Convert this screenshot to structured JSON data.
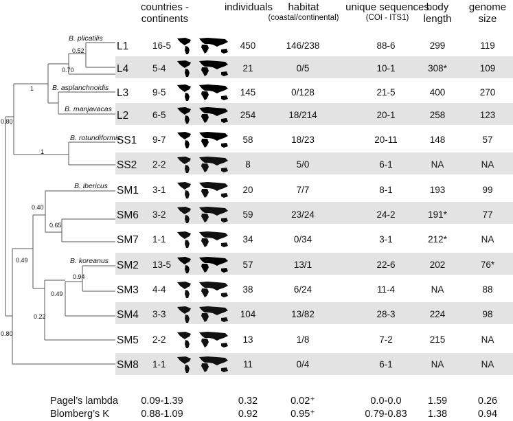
{
  "headers": {
    "countries": "countries - continents",
    "countries_line1": "countries -",
    "countries_line2": "continents",
    "individuals": "individuals",
    "habitat": "habitat",
    "habitat_sub": "(coastal/continental)",
    "unique": "unique sequences",
    "unique_sub": "(COI - ITS1)",
    "body": "body",
    "body2": "length",
    "genome": "genome",
    "genome2": "size"
  },
  "rows": [
    {
      "label": "L1",
      "cc": "16-5",
      "ind": "450",
      "hab": "146/238",
      "uniq": "88-6",
      "body": "299",
      "genome": "119"
    },
    {
      "label": "L4",
      "cc": "5-4",
      "ind": "21",
      "hab": "0/5",
      "uniq": "10-1",
      "body": "308*",
      "genome": "109"
    },
    {
      "label": "L3",
      "cc": "9-5",
      "ind": "145",
      "hab": "0/128",
      "uniq": "21-5",
      "body": "400",
      "genome": "270"
    },
    {
      "label": "L2",
      "cc": "6-5",
      "ind": "254",
      "hab": "18/214",
      "uniq": "20-1",
      "body": "258",
      "genome": "123"
    },
    {
      "label": "SS1",
      "cc": "9-7",
      "ind": "58",
      "hab": "18/23",
      "uniq": "20-11",
      "body": "148",
      "genome": "57"
    },
    {
      "label": "SS2",
      "cc": "2-2",
      "ind": "8",
      "hab": "5/0",
      "uniq": "6-1",
      "body": "NA",
      "genome": "NA"
    },
    {
      "label": "SM1",
      "cc": "3-1",
      "ind": "20",
      "hab": "7/7",
      "uniq": "8-1",
      "body": "193",
      "genome": "99"
    },
    {
      "label": "SM6",
      "cc": "3-2",
      "ind": "59",
      "hab": "23/24",
      "uniq": "24-2",
      "body": "191*",
      "genome": "77"
    },
    {
      "label": "SM7",
      "cc": "1-1",
      "ind": "34",
      "hab": "0/34",
      "uniq": "3-1",
      "body": "212*",
      "genome": "NA"
    },
    {
      "label": "SM2",
      "cc": "13-5",
      "ind": "57",
      "hab": "13/1",
      "uniq": "22-6",
      "body": "202",
      "genome": "76*"
    },
    {
      "label": "SM3",
      "cc": "4-4",
      "ind": "38",
      "hab": "6/24",
      "uniq": "11-4",
      "body": "NA",
      "genome": "88"
    },
    {
      "label": "SM4",
      "cc": "3-3",
      "ind": "104",
      "hab": "13/82",
      "uniq": "28-3",
      "body": "224",
      "genome": "98"
    },
    {
      "label": "SM5",
      "cc": "2-2",
      "ind": "13",
      "hab": "1/8",
      "uniq": "7-2",
      "body": "215",
      "genome": "NA"
    },
    {
      "label": "SM8",
      "cc": "1-1",
      "ind": "11",
      "hab": "0/4",
      "uniq": "6-1",
      "body": "NA",
      "genome": "NA"
    }
  ],
  "species": {
    "plicatilis": "B. plicatilis",
    "asplanchnoidis": "B. asplanchnoidis",
    "manjavacas": "B. manjavacas",
    "rotundiformis": "B. rotundiformis",
    "ibericus": "B. ibericus",
    "koreanus": "B. koreanus"
  },
  "nodes": {
    "n052": "0.52",
    "n070": "0.70",
    "n1a": "1",
    "n1b": "1",
    "n080a": "0.80",
    "n040": "0.40",
    "n065": "0.65",
    "n094": "0.94",
    "n049a": "0.49",
    "n049b": "0.49",
    "n022": "0.22",
    "n080b": "0.80"
  },
  "stats": {
    "pagel": {
      "name": "Pagel’s lambda",
      "cc": "0.09-1.39",
      "ind": "0.32",
      "hab": "0.02⁺",
      "uniq": "0.0-0.0",
      "body": "1.59",
      "genome": "0.26"
    },
    "blomberg": {
      "name": "Blomberg’s K",
      "cc": "0.88-1.09",
      "ind": "0.92",
      "hab": "0.95⁺",
      "uniq": "0.79-0.83",
      "body": "1.38",
      "genome": "0.94"
    }
  },
  "colors": {
    "band": "#e3e3e3",
    "land": "#000000",
    "land_light": "#ffffff",
    "tree": "#555555"
  }
}
